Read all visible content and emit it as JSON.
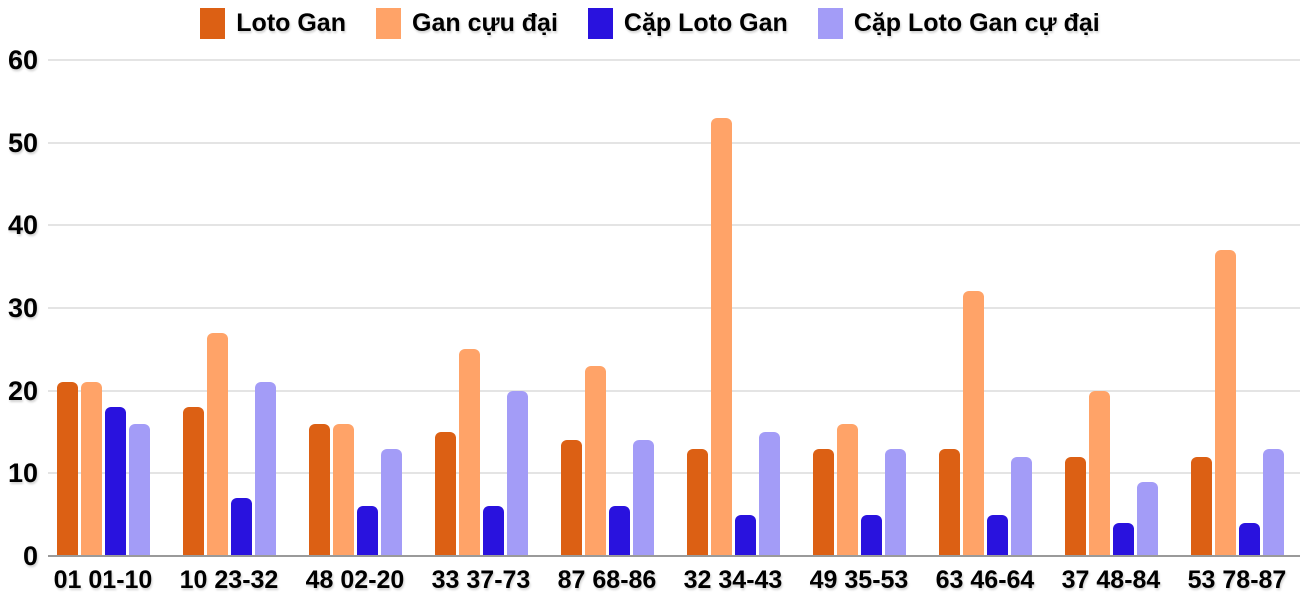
{
  "chart_data": {
    "type": "bar",
    "title": "",
    "xlabel": "",
    "ylabel": "",
    "categories": [
      "01 01-10",
      "10 23-32",
      "48 02-20",
      "33 37-73",
      "87 68-86",
      "32 34-43",
      "49 35-53",
      "63 46-64",
      "37 48-84",
      "53 78-87"
    ],
    "series": [
      {
        "name": "Loto Gan",
        "color": "#dc6014",
        "values": [
          21,
          18,
          16,
          15,
          14,
          13,
          13,
          13,
          12,
          12
        ]
      },
      {
        "name": "Gan cựu đại",
        "color": "#ffa368",
        "values": [
          21,
          27,
          16,
          25,
          23,
          53,
          16,
          32,
          20,
          37
        ]
      },
      {
        "name": "Cặp Loto Gan",
        "color": "#2912de",
        "values": [
          18,
          7,
          6,
          6,
          6,
          5,
          5,
          5,
          4,
          4
        ]
      },
      {
        "name": "Cặp Loto Gan cự đại",
        "color": "#a39cf7",
        "values": [
          16,
          21,
          13,
          20,
          14,
          15,
          13,
          12,
          9,
          13
        ]
      }
    ],
    "ylim": [
      0,
      60
    ],
    "yticks": [
      0,
      10,
      20,
      30,
      40,
      50,
      60
    ],
    "grid": true,
    "legend_position": "top",
    "colors": {
      "background": "#ffffff",
      "gridline": "#e4e4e4",
      "axis_line": "#9a9a9a",
      "text": "#000000"
    }
  }
}
